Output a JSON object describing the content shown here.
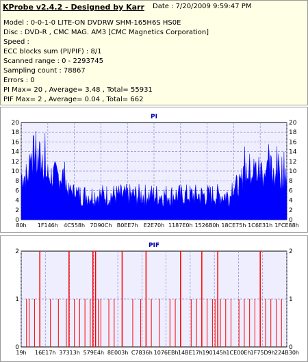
{
  "info": {
    "title": "KProbe v2.4.2 - Designed by Karr",
    "date": "Date : 7/20/2009 9:59:47 PM",
    "lines": [
      "Model : 0-0-1-0 LITE-ON DVDRW SHM-165H6S HS0E",
      "Disc : DVD-R , CMC MAG. AM3 [CMC Magnetics Corporation]",
      "Speed :",
      "ECC blocks sum (PI/PIF) : 8/1",
      "Scanned range : 0 - 2293745",
      "Sampling count : 78867",
      "Errors : 0",
      "PI Max= 20 , Average= 3.48 , Total= 55931",
      "PIF Max= 2 , Average= 0.04 , Total= 662"
    ]
  },
  "colors": {
    "pi": "#0000ff",
    "pif": "#ff0000",
    "plot_bg": "#eeeeff",
    "grid": "#8888cc",
    "title": "#0000aa"
  },
  "chart_data": [
    {
      "type": "area",
      "title": "PI",
      "ylim": [
        0,
        20
      ],
      "y_ticks": [
        0,
        2,
        4,
        6,
        8,
        10,
        12,
        14,
        16,
        18,
        20
      ],
      "x_tick_labels": [
        "80h",
        "1F146h",
        "4C558h",
        "7D90Ch",
        "B0EE7h",
        "E2E70h",
        "1187E0h",
        "1526B0h",
        "18CE75h",
        "1C6E31h",
        "1FCE88h"
      ],
      "grid": true,
      "segments": [
        {
          "x": [
            0.0,
            0.03
          ],
          "base": 9,
          "amp": 4
        },
        {
          "x": [
            0.03,
            0.09
          ],
          "base": 12,
          "amp": 6,
          "peak": 20
        },
        {
          "x": [
            0.09,
            0.17
          ],
          "base": 9,
          "amp": 4
        },
        {
          "x": [
            0.17,
            0.21
          ],
          "base": 6,
          "amp": 2
        },
        {
          "x": [
            0.21,
            0.79
          ],
          "base": 5,
          "amp": 3
        },
        {
          "x": [
            0.79,
            0.83
          ],
          "base": 7,
          "amp": 3
        },
        {
          "x": [
            0.83,
            1.0
          ],
          "base": 10,
          "amp": 5,
          "peak": 16
        }
      ]
    },
    {
      "type": "bar",
      "title": "PIF",
      "ylim": [
        0,
        2
      ],
      "y_ticks": [
        0,
        1,
        2
      ],
      "x_tick_labels": [
        "19h",
        "16E17h",
        "37313h",
        "579E4h",
        "8E003h",
        "C7836h",
        "1076EBh",
        "14BE17h",
        "190145h",
        "1CE00Eh",
        "1F75D9h",
        "224B30h"
      ],
      "grid": true,
      "events": [
        {
          "x": 0.02,
          "v": 1
        },
        {
          "x": 0.03,
          "v": 1
        },
        {
          "x": 0.05,
          "v": 1
        },
        {
          "x": 0.07,
          "v": 2
        },
        {
          "x": 0.11,
          "v": 1
        },
        {
          "x": 0.14,
          "v": 1
        },
        {
          "x": 0.17,
          "v": 1
        },
        {
          "x": 0.18,
          "v": 2
        },
        {
          "x": 0.2,
          "v": 1
        },
        {
          "x": 0.22,
          "v": 1
        },
        {
          "x": 0.24,
          "v": 1
        },
        {
          "x": 0.26,
          "v": 1
        },
        {
          "x": 0.27,
          "v": 2
        },
        {
          "x": 0.28,
          "v": 2
        },
        {
          "x": 0.29,
          "v": 1
        },
        {
          "x": 0.3,
          "v": 1
        },
        {
          "x": 0.33,
          "v": 1
        },
        {
          "x": 0.35,
          "v": 1
        },
        {
          "x": 0.38,
          "v": 2
        },
        {
          "x": 0.42,
          "v": 1
        },
        {
          "x": 0.45,
          "v": 1
        },
        {
          "x": 0.47,
          "v": 2
        },
        {
          "x": 0.49,
          "v": 1
        },
        {
          "x": 0.52,
          "v": 1
        },
        {
          "x": 0.56,
          "v": 1
        },
        {
          "x": 0.58,
          "v": 1
        },
        {
          "x": 0.6,
          "v": 2
        },
        {
          "x": 0.64,
          "v": 1
        },
        {
          "x": 0.66,
          "v": 1
        },
        {
          "x": 0.68,
          "v": 2
        },
        {
          "x": 0.7,
          "v": 1
        },
        {
          "x": 0.72,
          "v": 1
        },
        {
          "x": 0.73,
          "v": 1
        },
        {
          "x": 0.74,
          "v": 2
        },
        {
          "x": 0.75,
          "v": 1
        },
        {
          "x": 0.77,
          "v": 1
        },
        {
          "x": 0.79,
          "v": 1
        },
        {
          "x": 0.82,
          "v": 1
        },
        {
          "x": 0.84,
          "v": 1
        },
        {
          "x": 0.86,
          "v": 1
        },
        {
          "x": 0.88,
          "v": 1
        },
        {
          "x": 0.9,
          "v": 2
        },
        {
          "x": 0.92,
          "v": 1
        },
        {
          "x": 0.94,
          "v": 1
        },
        {
          "x": 0.96,
          "v": 1
        },
        {
          "x": 0.98,
          "v": 1
        }
      ]
    }
  ]
}
